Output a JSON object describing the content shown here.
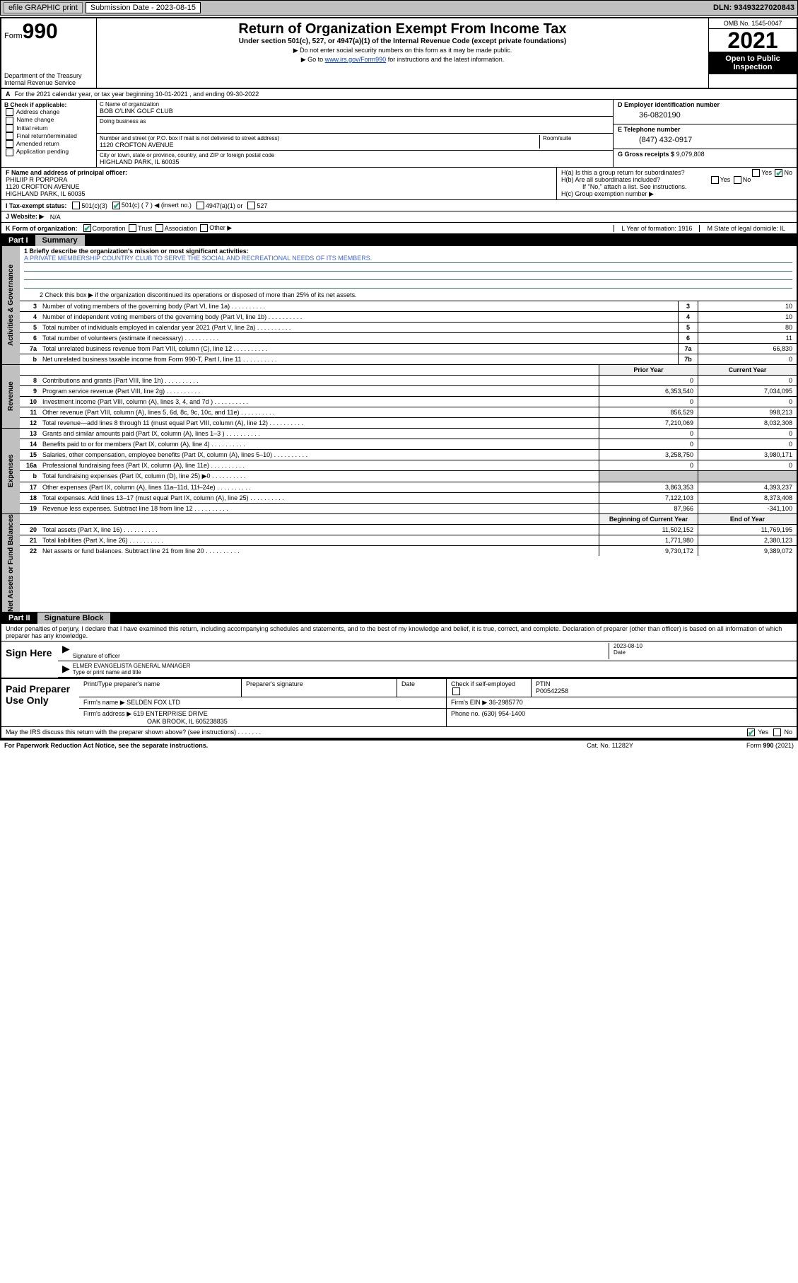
{
  "topbar": {
    "efile": "efile GRAPHIC print",
    "submission_label": "Submission Date - 2023-08-15",
    "dln": "DLN: 93493227020843"
  },
  "header": {
    "form_prefix": "Form",
    "form_number": "990",
    "dept": "Department of the Treasury",
    "irs": "Internal Revenue Service",
    "title": "Return of Organization Exempt From Income Tax",
    "sub": "Under section 501(c), 527, or 4947(a)(1) of the Internal Revenue Code (except private foundations)",
    "line1": "▶ Do not enter social security numbers on this form as it may be made public.",
    "line2_pre": "▶ Go to ",
    "line2_link": "www.irs.gov/Form990",
    "line2_post": " for instructions and the latest information.",
    "omb": "OMB No. 1545-0047",
    "year": "2021",
    "inspection": "Open to Public Inspection"
  },
  "period": "For the 2021 calendar year, or tax year beginning 10-01-2021   , and ending 09-30-2022",
  "boxA": "A",
  "boxB": {
    "label": "B Check if applicable:",
    "items": [
      "Address change",
      "Name change",
      "Initial return",
      "Final return/terminated",
      "Amended return",
      "Application pending"
    ]
  },
  "boxC": {
    "name_label": "C Name of organization",
    "name": "BOB O'LINK GOLF CLUB",
    "dba_label": "Doing business as",
    "addr_label": "Number and street (or P.O. box if mail is not delivered to street address)",
    "room_label": "Room/suite",
    "addr": "1120 CROFTON AVENUE",
    "city_label": "City or town, state or province, country, and ZIP or foreign postal code",
    "city": "HIGHLAND PARK, IL  60035"
  },
  "boxD": {
    "label": "D Employer identification number",
    "val": "36-0820190"
  },
  "boxE": {
    "label": "E Telephone number",
    "val": "(847) 432-0917"
  },
  "boxG": {
    "label": "G Gross receipts $",
    "val": "9,079,808"
  },
  "boxF": {
    "label": "F Name and address of principal officer:",
    "name": "PHILIIP R PORPORA",
    "addr1": "1120 CROFTON AVENUE",
    "addr2": "HIGHLAND PARK, IL  60035"
  },
  "boxH": {
    "a": "H(a)  Is this a group return for subordinates?",
    "a_yes": "Yes",
    "a_no": "No",
    "b": "H(b)  Are all subordinates included?",
    "b_yes": "Yes",
    "b_no": "No",
    "b_note": "If \"No,\" attach a list. See instructions.",
    "c": "H(c)  Group exemption number ▶"
  },
  "lineI": {
    "label": "I  Tax-exempt status:",
    "c3": "501(c)(3)",
    "c": "501(c) ( 7 ) ◀ (insert no.)",
    "a1": "4947(a)(1) or",
    "s527": "527"
  },
  "lineJ": {
    "label": "J  Website: ▶",
    "val": "N/A"
  },
  "lineK": {
    "label": "K Form of organization:",
    "opts": [
      "Corporation",
      "Trust",
      "Association",
      "Other ▶"
    ],
    "L": "L Year of formation: 1916",
    "M": "M State of legal domicile: IL"
  },
  "part1": {
    "num": "Part I",
    "title": "Summary"
  },
  "summary": {
    "l1_label": "1  Briefly describe the organization's mission or most significant activities:",
    "l1_text": "A PRIVATE MEMBERSHIP COUNTRY CLUB TO SERVE THE SOCIAL AND RECREATIONAL NEEDS OF ITS MEMBERS.",
    "l2": "2  Check this box ▶        if the organization discontinued its operations or disposed of more than 25% of its net assets.",
    "rows_gov": [
      {
        "n": "3",
        "d": "Number of voting members of the governing body (Part VI, line 1a)",
        "b": "3",
        "v": "10"
      },
      {
        "n": "4",
        "d": "Number of independent voting members of the governing body (Part VI, line 1b)",
        "b": "4",
        "v": "10"
      },
      {
        "n": "5",
        "d": "Total number of individuals employed in calendar year 2021 (Part V, line 2a)",
        "b": "5",
        "v": "80"
      },
      {
        "n": "6",
        "d": "Total number of volunteers (estimate if necessary)",
        "b": "6",
        "v": "11"
      },
      {
        "n": "7a",
        "d": "Total unrelated business revenue from Part VIII, column (C), line 12",
        "b": "7a",
        "v": "66,830"
      },
      {
        "n": "b",
        "d": "Net unrelated business taxable income from Form 990-T, Part I, line 11",
        "b": "7b",
        "v": "0"
      }
    ],
    "col_prior": "Prior Year",
    "col_current": "Current Year",
    "rows_rev": [
      {
        "n": "8",
        "d": "Contributions and grants (Part VIII, line 1h)",
        "p": "0",
        "c": "0"
      },
      {
        "n": "9",
        "d": "Program service revenue (Part VIII, line 2g)",
        "p": "6,353,540",
        "c": "7,034,095"
      },
      {
        "n": "10",
        "d": "Investment income (Part VIII, column (A), lines 3, 4, and 7d )",
        "p": "0",
        "c": "0"
      },
      {
        "n": "11",
        "d": "Other revenue (Part VIII, column (A), lines 5, 6d, 8c, 9c, 10c, and 11e)",
        "p": "856,529",
        "c": "998,213"
      },
      {
        "n": "12",
        "d": "Total revenue—add lines 8 through 11 (must equal Part VIII, column (A), line 12)",
        "p": "7,210,069",
        "c": "8,032,308"
      }
    ],
    "rows_exp": [
      {
        "n": "13",
        "d": "Grants and similar amounts paid (Part IX, column (A), lines 1–3 )",
        "p": "0",
        "c": "0"
      },
      {
        "n": "14",
        "d": "Benefits paid to or for members (Part IX, column (A), line 4)",
        "p": "0",
        "c": "0"
      },
      {
        "n": "15",
        "d": "Salaries, other compensation, employee benefits (Part IX, column (A), lines 5–10)",
        "p": "3,258,750",
        "c": "3,980,171"
      },
      {
        "n": "16a",
        "d": "Professional fundraising fees (Part IX, column (A), line 11e)",
        "p": "0",
        "c": "0"
      },
      {
        "n": "b",
        "d": "Total fundraising expenses (Part IX, column (D), line 25) ▶0",
        "p": "",
        "c": "",
        "shade": true
      },
      {
        "n": "17",
        "d": "Other expenses (Part IX, column (A), lines 11a–11d, 11f–24e)",
        "p": "3,863,353",
        "c": "4,393,237"
      },
      {
        "n": "18",
        "d": "Total expenses. Add lines 13–17 (must equal Part IX, column (A), line 25)",
        "p": "7,122,103",
        "c": "8,373,408"
      },
      {
        "n": "19",
        "d": "Revenue less expenses. Subtract line 18 from line 12",
        "p": "87,966",
        "c": "-341,100"
      }
    ],
    "col_begin": "Beginning of Current Year",
    "col_end": "End of Year",
    "rows_net": [
      {
        "n": "20",
        "d": "Total assets (Part X, line 16)",
        "p": "11,502,152",
        "c": "11,769,195"
      },
      {
        "n": "21",
        "d": "Total liabilities (Part X, line 26)",
        "p": "1,771,980",
        "c": "2,380,123"
      },
      {
        "n": "22",
        "d": "Net assets or fund balances. Subtract line 21 from line 20",
        "p": "9,730,172",
        "c": "9,389,072"
      }
    ],
    "tabs": {
      "gov": "Activities & Governance",
      "rev": "Revenue",
      "exp": "Expenses",
      "net": "Net Assets or Fund Balances"
    }
  },
  "part2": {
    "num": "Part II",
    "title": "Signature Block"
  },
  "sig": {
    "declare": "Under penalties of perjury, I declare that I have examined this return, including accompanying schedules and statements, and to the best of my knowledge and belief, it is true, correct, and complete. Declaration of preparer (other than officer) is based on all information of which preparer has any knowledge.",
    "sign_here": "Sign Here",
    "sig_officer": "Signature of officer",
    "date": "Date",
    "date_val": "2023-08-10",
    "name_title": "ELMER EVANGELISTA  GENERAL MANAGER",
    "name_label": "Type or print name and title"
  },
  "prep": {
    "label": "Paid Preparer Use Only",
    "h1": "Print/Type preparer's name",
    "h2": "Preparer's signature",
    "h3": "Date",
    "h4_check": "Check        if self-employed",
    "h5": "PTIN",
    "ptin": "P00542258",
    "firm_name_l": "Firm's name    ▶",
    "firm_name": "SELDEN FOX LTD",
    "firm_ein_l": "Firm's EIN ▶",
    "firm_ein": "36-2985770",
    "firm_addr_l": "Firm's address ▶",
    "firm_addr1": "619 ENTERPRISE DRIVE",
    "firm_addr2": "OAK BROOK, IL  605238835",
    "phone_l": "Phone no.",
    "phone": "(630) 954-1400"
  },
  "may_irs": {
    "q": "May the IRS discuss this return with the preparer shown above? (see instructions)",
    "yes": "Yes",
    "no": "No"
  },
  "footer": {
    "l": "For Paperwork Reduction Act Notice, see the separate instructions.",
    "m": "Cat. No. 11282Y",
    "r": "Form 990 (2021)"
  }
}
